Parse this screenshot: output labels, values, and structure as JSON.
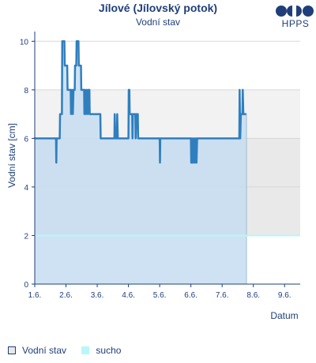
{
  "header": {
    "title": "Jílové (Jílovský potok)",
    "subtitle": "Vodní stav"
  },
  "logo": {
    "text": "HPPS"
  },
  "legend": [
    {
      "label": "Vodní stav"
    },
    {
      "label": "sucho"
    }
  ],
  "colors": {
    "series_line": "#2f7fbf",
    "series_fill": "#c7ddf1",
    "band_upper": "#f2f2f2",
    "band_lower": "#e9e9e9",
    "sucho_line": "#b8f7f7",
    "axis": "#1f3f7a"
  },
  "chart_data": {
    "type": "area",
    "title": "Jílové (Jílovský potok)",
    "subtitle": "Vodní stav",
    "xlabel": "Datum",
    "ylabel": "Vodní stav [cm]",
    "ylim": [
      0,
      10.4
    ],
    "yticks": [
      "0",
      "2",
      "4",
      "6",
      "8",
      "10"
    ],
    "xlim_days": [
      1,
      9.5
    ],
    "xtick_labels": [
      "1.6.",
      "2.6.",
      "3.6.",
      "4.6.",
      "5.6.",
      "6.6.",
      "7.6.",
      "8.6.",
      "9.6."
    ],
    "bands": [
      {
        "from": 6,
        "to": 8,
        "label": ""
      },
      {
        "from": 2,
        "to": 6,
        "label": ""
      }
    ],
    "sucho_level": 2,
    "series": [
      {
        "name": "Vodní stav",
        "points": [
          [
            1.0,
            6
          ],
          [
            1.68,
            6
          ],
          [
            1.69,
            5
          ],
          [
            1.7,
            6
          ],
          [
            1.8,
            6
          ],
          [
            1.81,
            7
          ],
          [
            1.87,
            7
          ],
          [
            1.88,
            10
          ],
          [
            1.95,
            10
          ],
          [
            1.96,
            9
          ],
          [
            2.0,
            9
          ],
          [
            2.04,
            9
          ],
          [
            2.05,
            8
          ],
          [
            2.15,
            8
          ],
          [
            2.16,
            7
          ],
          [
            2.19,
            8
          ],
          [
            2.22,
            7
          ],
          [
            2.24,
            8
          ],
          [
            2.28,
            8
          ],
          [
            2.29,
            9
          ],
          [
            2.33,
            9
          ],
          [
            2.34,
            10
          ],
          [
            2.4,
            10
          ],
          [
            2.41,
            9
          ],
          [
            2.48,
            9
          ],
          [
            2.49,
            8
          ],
          [
            2.58,
            8
          ],
          [
            2.59,
            7
          ],
          [
            2.62,
            8
          ],
          [
            2.64,
            7
          ],
          [
            2.67,
            8
          ],
          [
            2.7,
            7
          ],
          [
            2.72,
            8
          ],
          [
            2.75,
            8
          ],
          [
            2.76,
            7
          ],
          [
            3.1,
            7
          ],
          [
            3.11,
            6
          ],
          [
            3.55,
            6
          ],
          [
            3.56,
            7
          ],
          [
            3.58,
            6
          ],
          [
            3.63,
            6
          ],
          [
            3.64,
            7
          ],
          [
            3.66,
            6
          ],
          [
            4.0,
            6
          ],
          [
            4.01,
            8
          ],
          [
            4.03,
            8
          ],
          [
            4.04,
            7
          ],
          [
            4.12,
            7
          ],
          [
            4.13,
            6
          ],
          [
            4.14,
            7
          ],
          [
            4.22,
            7
          ],
          [
            4.23,
            6
          ],
          [
            4.26,
            7
          ],
          [
            4.3,
            7
          ],
          [
            4.31,
            6
          ],
          [
            5.0,
            6
          ],
          [
            5.01,
            5
          ],
          [
            5.02,
            6
          ],
          [
            6.0,
            6
          ],
          [
            6.01,
            5
          ],
          [
            6.03,
            6
          ],
          [
            6.04,
            5
          ],
          [
            6.07,
            6
          ],
          [
            6.08,
            5
          ],
          [
            6.12,
            6
          ],
          [
            6.13,
            5
          ],
          [
            6.16,
            6
          ],
          [
            6.18,
            5
          ],
          [
            6.2,
            6
          ],
          [
            7.5,
            6
          ],
          [
            7.55,
            6
          ],
          [
            7.56,
            8
          ],
          [
            7.58,
            6
          ],
          [
            7.6,
            7
          ],
          [
            7.65,
            7
          ],
          [
            7.66,
            8
          ],
          [
            7.68,
            7
          ],
          [
            7.78,
            7
          ]
        ]
      }
    ]
  }
}
